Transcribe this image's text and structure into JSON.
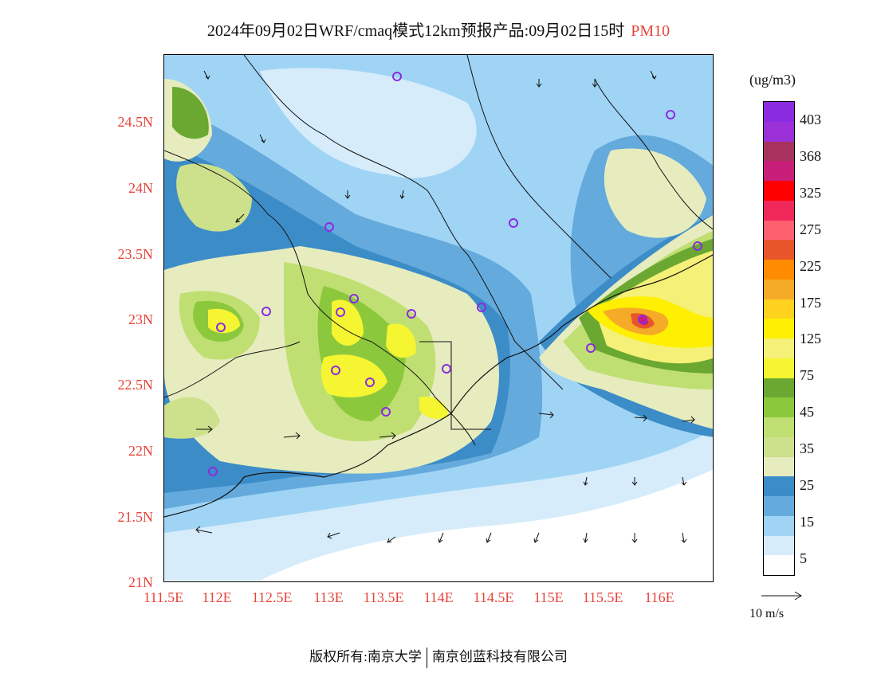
{
  "title": {
    "text": "2024年09月02日WRF/cmaq模式12km预报产品:09月02日15时",
    "pollutant": "PM10"
  },
  "axes": {
    "lat_labels": [
      "24.5N",
      "24N",
      "23.5N",
      "23N",
      "22.5N",
      "22N",
      "21.5N",
      "21N"
    ],
    "lon_labels": [
      "111.5E",
      "112E",
      "112.5E",
      "113E",
      "113.5E",
      "114E",
      "114.5E",
      "115E",
      "115.5E",
      "116E"
    ]
  },
  "legend": {
    "unit": "(ug/m3)",
    "ticks": [
      "403",
      "368",
      "325",
      "275",
      "225",
      "175",
      "125",
      "75",
      "45",
      "35",
      "25",
      "15",
      "5"
    ],
    "colors": [
      "#8a2be2",
      "#9b30d9",
      "#a8325e",
      "#c81e7a",
      "#ff0000",
      "#f0285a",
      "#ff6070",
      "#e8552a",
      "#ff8c00",
      "#f5aa28",
      "#ffd21e",
      "#ffef00",
      "#f5f078",
      "#f5f532",
      "#6aa832",
      "#8cc83c",
      "#c0df72",
      "#cde08c",
      "#e6ecbe",
      "#3c8cc8",
      "#64aadc",
      "#a0d4f5",
      "#d6ecfa",
      "#ffffff"
    ],
    "wind_ref": "10 m/s"
  },
  "footer": {
    "left": "版权所有:南京大学",
    "right": "南京创蓝科技有限公司"
  },
  "colors": {
    "accent": "#e8443a"
  }
}
